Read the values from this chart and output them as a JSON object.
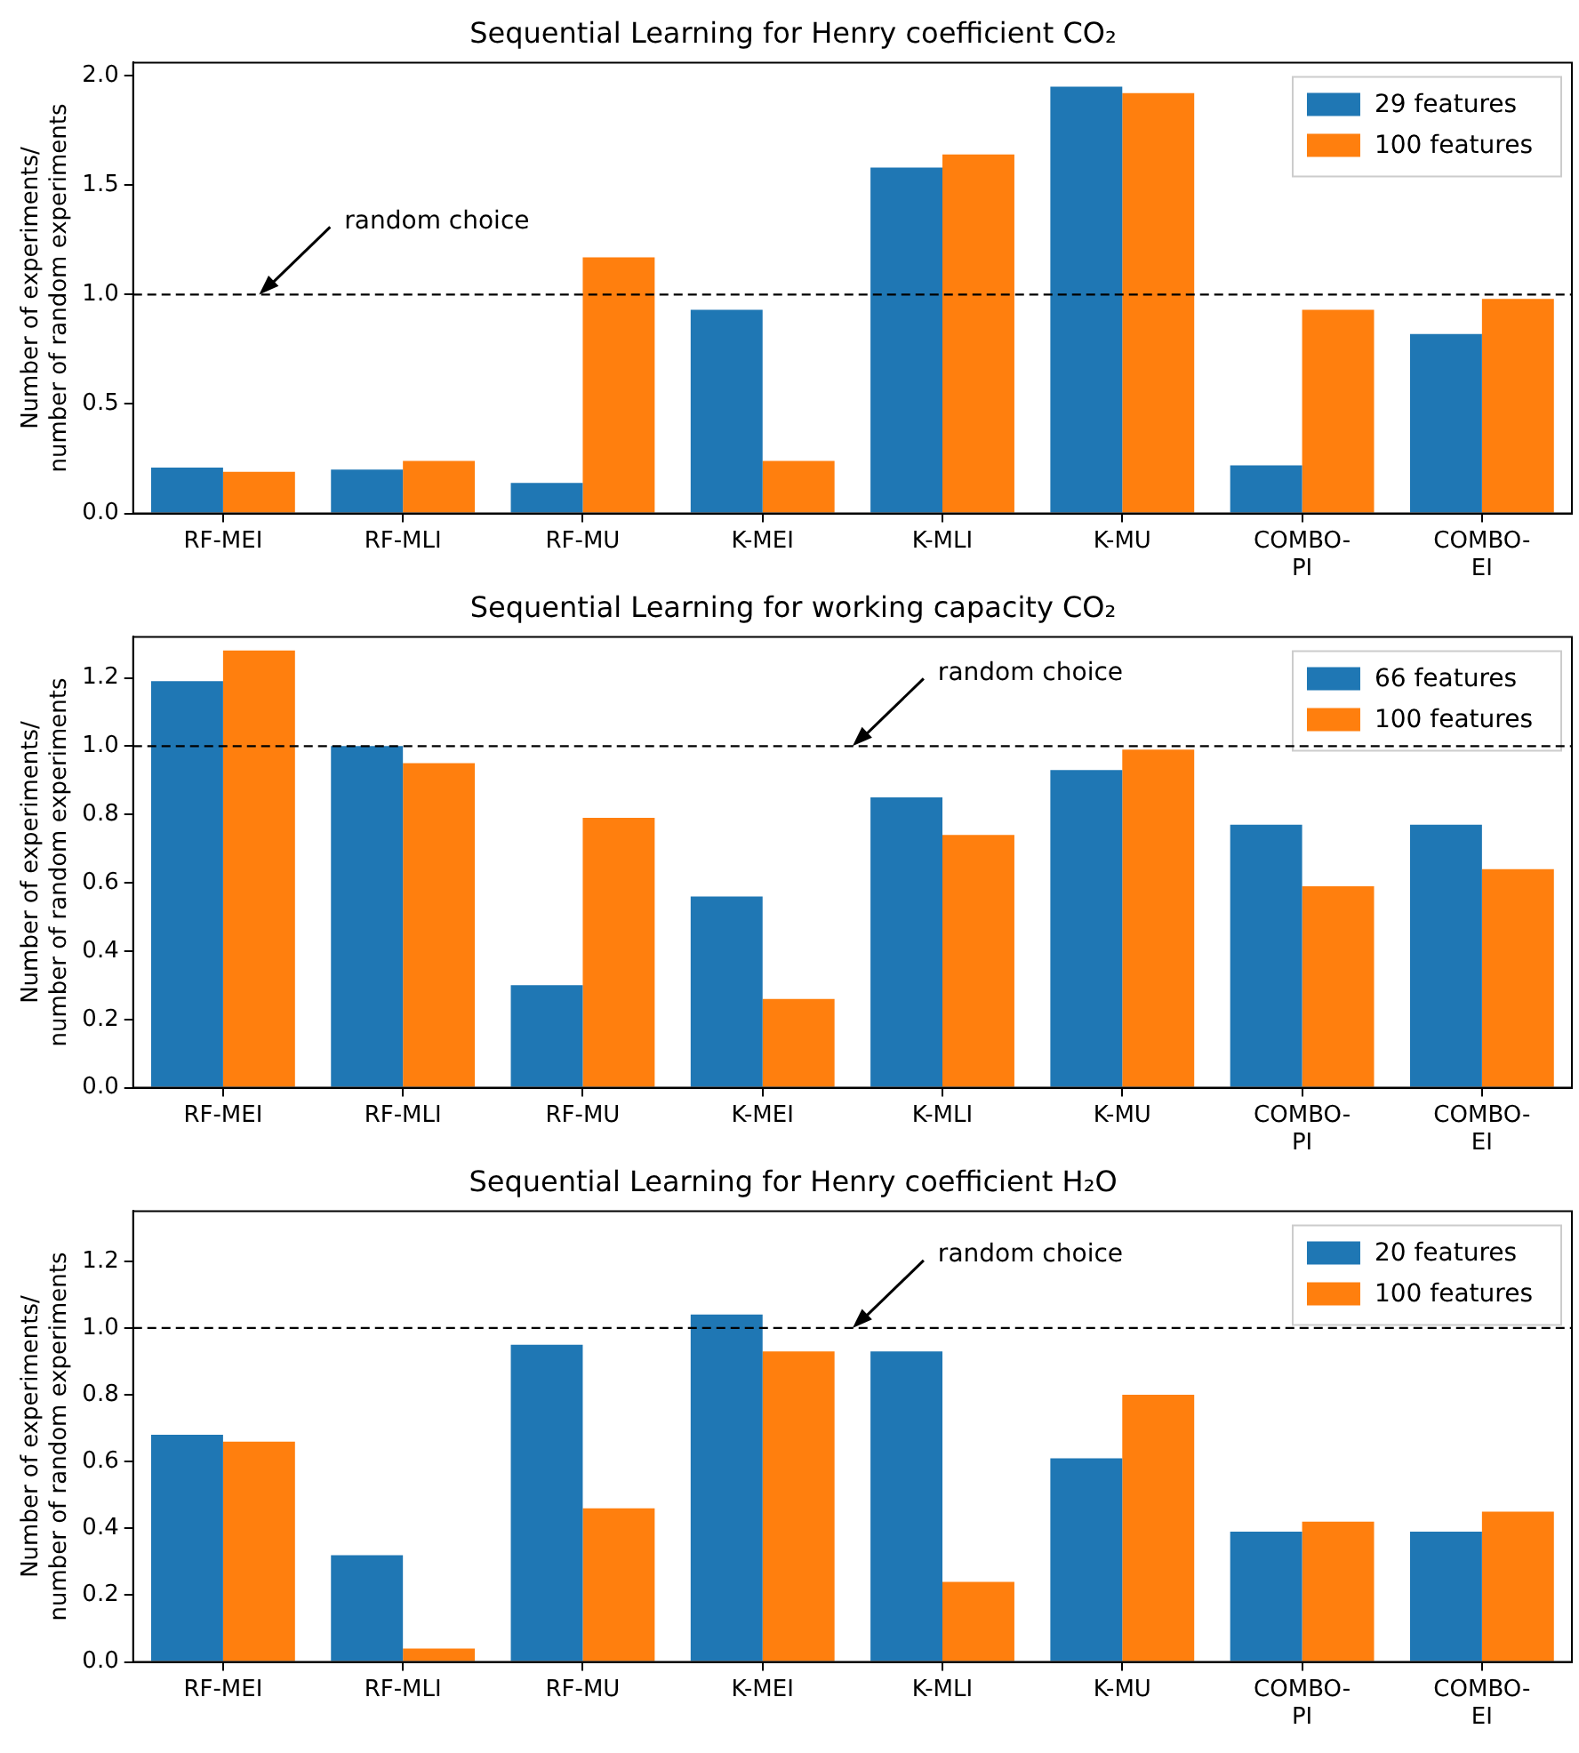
{
  "chart_data": [
    {
      "type": "bar",
      "title": "Sequential Learning for Henry coefficient CO₂",
      "ylabel": "Number of experiments/\nnumber of random experiments",
      "categories": [
        "RF-MEI",
        "RF-MLI",
        "RF-MU",
        "K-MEI",
        "K-MLI",
        "K-MU",
        "COMBO-\nPI",
        "COMBO-\nEI"
      ],
      "series": [
        {
          "name": "29 features",
          "color": "#1f77b4",
          "values": [
            0.21,
            0.2,
            0.14,
            0.93,
            1.58,
            1.95,
            0.22,
            0.82
          ]
        },
        {
          "name": "100 features",
          "color": "#ff7f0e",
          "values": [
            0.19,
            0.24,
            1.17,
            0.24,
            1.64,
            1.92,
            0.93,
            0.98
          ]
        }
      ],
      "ylim": [
        0,
        2.06
      ],
      "yticks": [
        {
          "value": 0,
          "label": "0.0"
        },
        {
          "value": 0.5,
          "label": "0.5"
        },
        {
          "value": 1,
          "label": "1.0"
        },
        {
          "value": 1.5,
          "label": "1.5"
        },
        {
          "value": 2,
          "label": "2.0"
        }
      ],
      "grid": false,
      "legend": "top right",
      "ref_lines": [
        {
          "axis": "y",
          "value": 1,
          "label": "random choice",
          "color": "#000000",
          "line_style": "dashed"
        }
      ]
    },
    {
      "type": "bar",
      "title": "Sequential Learning for working capacity CO₂",
      "ylabel": "Number of experiments/\nnumber of random experiments",
      "categories": [
        "RF-MEI",
        "RF-MLI",
        "RF-MU",
        "K-MEI",
        "K-MLI",
        "K-MU",
        "COMBO-\nPI",
        "COMBO-\nEI"
      ],
      "series": [
        {
          "name": "66 features",
          "color": "#1f77b4",
          "values": [
            1.19,
            1.0,
            0.3,
            0.56,
            0.85,
            0.93,
            0.77,
            0.77
          ]
        },
        {
          "name": "100 features",
          "color": "#ff7f0e",
          "values": [
            1.28,
            0.95,
            0.79,
            0.26,
            0.74,
            0.99,
            0.59,
            0.64
          ]
        }
      ],
      "ylim": [
        0,
        1.32
      ],
      "yticks": [
        {
          "value": 0,
          "label": "0.0"
        },
        {
          "value": 0.2,
          "label": "0.2"
        },
        {
          "value": 0.4,
          "label": "0.4"
        },
        {
          "value": 0.6,
          "label": "0.6"
        },
        {
          "value": 0.8,
          "label": "0.8"
        },
        {
          "value": 1,
          "label": "1.0"
        },
        {
          "value": 1.2,
          "label": "1.2"
        }
      ],
      "grid": false,
      "legend": "top right",
      "ref_lines": [
        {
          "axis": "y",
          "value": 1,
          "label": "random choice",
          "color": "#000000",
          "line_style": "dashed"
        }
      ]
    },
    {
      "type": "bar",
      "title": "Sequential Learning for Henry coefficient H₂O",
      "ylabel": "Number of experiments/\nnumber of random experiments",
      "categories": [
        "RF-MEI",
        "RF-MLI",
        "RF-MU",
        "K-MEI",
        "K-MLI",
        "K-MU",
        "COMBO-\nPI",
        "COMBO-\nEI"
      ],
      "series": [
        {
          "name": "20 features",
          "color": "#1f77b4",
          "values": [
            0.68,
            0.32,
            0.95,
            1.04,
            0.93,
            0.61,
            0.39,
            0.39
          ]
        },
        {
          "name": "100 features",
          "color": "#ff7f0e",
          "values": [
            0.66,
            0.04,
            0.46,
            0.93,
            0.24,
            0.8,
            0.42,
            0.45
          ]
        }
      ],
      "ylim": [
        0,
        1.35
      ],
      "yticks": [
        {
          "value": 0,
          "label": "0.0"
        },
        {
          "value": 0.2,
          "label": "0.2"
        },
        {
          "value": 0.4,
          "label": "0.4"
        },
        {
          "value": 0.6,
          "label": "0.6"
        },
        {
          "value": 0.8,
          "label": "0.8"
        },
        {
          "value": 1,
          "label": "1.0"
        },
        {
          "value": 1.2,
          "label": "1.2"
        }
      ],
      "grid": false,
      "legend": "top right",
      "ref_lines": [
        {
          "axis": "y",
          "value": 1,
          "label": "random choice",
          "color": "#000000",
          "line_style": "dashed"
        }
      ]
    }
  ]
}
